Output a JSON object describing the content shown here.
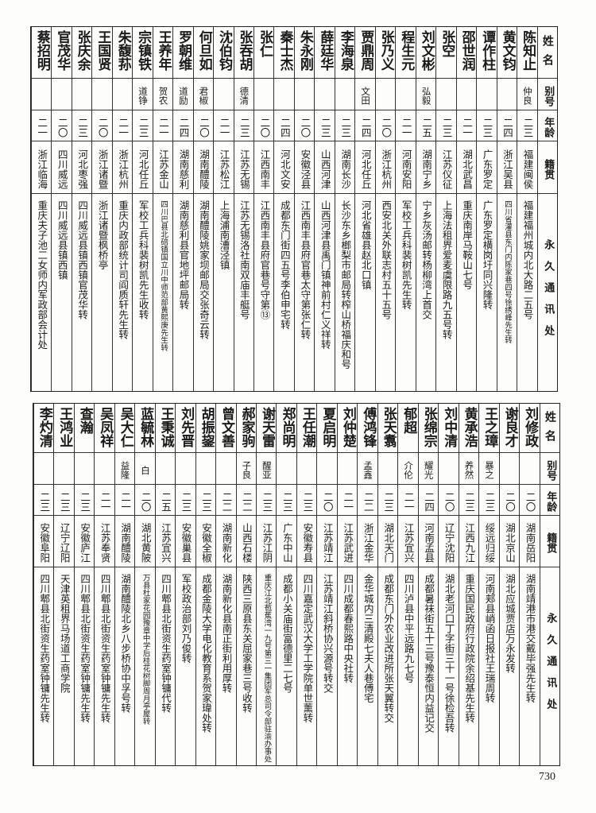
{
  "header": {
    "name": "姓名",
    "alias": "别号",
    "age": "年龄",
    "native": "籍贯",
    "address": "永久通讯处"
  },
  "top": {
    "rows": [
      {
        "name": "陈知止",
        "alias": "仲良",
        "age": "二三",
        "native": "福建闽侯",
        "address": "福建福州城内北大路二五号"
      },
      {
        "name": "黄文钧",
        "alias": "",
        "age": "二四",
        "native": "浙江吴县",
        "address": "四川省灌县东门内陈家巷四号徐绣峰先生转"
      },
      {
        "name": "谭作柱",
        "alias": "",
        "age": "二三",
        "native": "广东罗定",
        "address": "广东罗定横岗圩同兴隆转"
      },
      {
        "name": "邵世润",
        "alias": "",
        "age": "二一",
        "native": "湖北武昌",
        "address": "重庆南岸马鞍山七号"
      },
      {
        "name": "张空",
        "alias": "",
        "age": "二三",
        "native": "江苏仪征",
        "address": "上海法租界爱麦虞限路九五号转"
      },
      {
        "name": "刘文彬",
        "alias": "弘毅",
        "age": "二五",
        "native": "湖南宁乡",
        "address": "宁乡灰汤邮转杨柳湾上首交"
      },
      {
        "name": "程生元",
        "alias": "",
        "age": "二一",
        "native": "河南安阳",
        "address": "军校工兵科裴树凯先生转"
      },
      {
        "name": "张乃义",
        "alias": "",
        "age": "二〇",
        "native": "浙江杭州",
        "address": "西安北关外联志村五十五号"
      },
      {
        "name": "贾鼎周",
        "alias": "文田",
        "age": "二四",
        "native": "河北任丘",
        "address": "河北省雄县赵北口镇"
      },
      {
        "name": "李海泉",
        "alias": "",
        "age": "二三",
        "native": "湖南长沙",
        "address": "长沙东乡榔梨市邮局转榨山桥福庆和号"
      },
      {
        "name": "薛廷华",
        "alias": "",
        "age": "二三",
        "native": "山西河津",
        "address": "山西河津县禹门镇神前村仁义祥转"
      },
      {
        "name": "朱永刚",
        "alias": "",
        "age": "二〇",
        "native": "安徽泾县",
        "address": "江西南丰县府官巷太守第张仁转"
      },
      {
        "name": "秦士杰",
        "alias": "",
        "age": "二四",
        "native": "河北文安",
        "address": "成都东门街四五号李伯申宅转"
      },
      {
        "name": "张仁",
        "alias": "",
        "age": "二〇",
        "native": "江西南丰",
        "address": "江西南丰县府官巷号守第⑬"
      },
      {
        "name": "张吞胡",
        "alias": "德清",
        "age": "二三",
        "native": "江苏无锡",
        "address": "江苏无锡洛社南双庙丰艇号"
      },
      {
        "name": "沈伯钧",
        "alias": "",
        "age": "二一",
        "native": "江苏松江",
        "address": "上海浦南漕泾镇"
      },
      {
        "name": "何旦如",
        "alias": "君椒",
        "age": "二〇",
        "native": "湖南醴陵",
        "address": "湖南醴陵姚家坝邮局交张奇云转"
      },
      {
        "name": "罗朝维",
        "alias": "道励",
        "age": "二四",
        "native": "湖南慈利",
        "address": "湖南慈利县官地坪邮局转"
      },
      {
        "name": "王养年",
        "alias": "贺农",
        "age": "二一",
        "native": "江苏金山",
        "address": "四川巴县北碚镇国立川中师范部黄熙庚先生转"
      },
      {
        "name": "宗镇铁",
        "alias": "道铮",
        "age": "二三",
        "native": "河北任丘",
        "address": "军校工兵科裴树凯先生收转"
      },
      {
        "name": "朱馥荪",
        "alias": "",
        "age": "二一",
        "native": "浙江杭州",
        "address": "重庆内政部统计司阎质轩先生转"
      },
      {
        "name": "王国贤",
        "alias": "",
        "age": "二〇",
        "native": "浙江诸暨",
        "address": "浙江诸暨枫桥亭"
      },
      {
        "name": "张庆余",
        "alias": "",
        "age": "二三",
        "native": "河北枣强",
        "address": "四川威远县镇西镇官茂华转"
      },
      {
        "name": "官茂华",
        "alias": "",
        "age": "二〇",
        "native": "四川威远",
        "address": "四川威远县镇西镇"
      },
      {
        "name": "蔡招明",
        "alias": "",
        "age": "二一",
        "native": "浙江临海",
        "address": "重庆夫子池二女师内军政部会计处"
      }
    ]
  },
  "bottom": {
    "rows": [
      {
        "name": "刘修政",
        "alias": "",
        "age": "二〇",
        "native": "湖南岳阳",
        "address": "湖南靖港市港交戴毕强先生转"
      },
      {
        "name": "谢良才",
        "alias": "",
        "age": "二〇",
        "native": "湖北京山",
        "address": "湖北应城贾店万永发转"
      },
      {
        "name": "王之璋",
        "alias": "暴之",
        "age": "二三",
        "native": "绥远归绥",
        "address": "河南郏县峭函日报社王瑞周转"
      },
      {
        "name": "黄承浩",
        "alias": "养然",
        "age": "二三",
        "native": "江西九江",
        "address": "重庆国民政府行政院余绍基先生转"
      },
      {
        "name": "刘中清",
        "alias": "",
        "age": "二〇",
        "native": "辽宁沈阳",
        "address": "湖北老河口丁字街三十一号徐检吾转"
      },
      {
        "name": "张绵宗",
        "alias": "耀光",
        "age": "二四",
        "native": "河南孟县",
        "address": "成都暑袜街五十三号豫泰恒内益记交"
      },
      {
        "name": "郁超",
        "alias": "介伦",
        "age": "二一",
        "native": "江苏宜兴",
        "address": "四川泸县中平远路九七号"
      },
      {
        "name": "张天翥",
        "alias": "",
        "age": "二三",
        "native": "湖北天门",
        "address": "成都东门外农业改进所张天翼转交"
      },
      {
        "name": "傅鸿锋",
        "alias": "孟鑫",
        "age": "二二",
        "native": "浙江金华",
        "address": "金华城内三清殿七夫人巷傅宅"
      },
      {
        "name": "刘仲楚",
        "alias": "",
        "age": "二一",
        "native": "江苏武进",
        "address": "四川成都春熙路中央社转"
      },
      {
        "name": "夏启明",
        "alias": "",
        "age": "二〇",
        "native": "江苏靖江",
        "address": "江苏靖江斜桥协兴源号转交"
      },
      {
        "name": "王任潮",
        "alias": "",
        "age": "二三",
        "native": "安徽寿县",
        "address": "四川嘉定武汉大学工学院单世薰转"
      },
      {
        "name": "郑尚明",
        "alias": "",
        "age": "二三",
        "native": "广东中山",
        "address": "成都小关庙街富德里二七号"
      },
      {
        "name": "谢天雷",
        "alias": "醒亚",
        "age": "二三",
        "native": "江苏江阴",
        "address": "重庆江北苞蕉湾一九号第三一集团军总司令部驻渝办事处"
      },
      {
        "name": "郝家驹",
        "alias": "子良",
        "age": "二二",
        "native": "山西石楼",
        "address": "陕西三原县东关屈家巷三号收转"
      },
      {
        "name": "曾文善",
        "alias": "",
        "age": "二二",
        "native": "湖南新化",
        "address": "湖南新化县南正街利用厚转"
      },
      {
        "name": "胡振鋆",
        "alias": "",
        "age": "二三",
        "native": "安徽全椒",
        "address": "成都金陵大学电化教育系贺家瑋处转"
      },
      {
        "name": "刘先晋",
        "alias": "",
        "age": "二三",
        "native": "安徽巢县",
        "address": "军校政治部刘乃俊转"
      },
      {
        "name": "王秉诚",
        "alias": "",
        "age": "二五",
        "native": "江苏宜兴",
        "address": "四川郫县北街资生药室钟镛代转"
      },
      {
        "name": "蓝毓林",
        "alias": "白",
        "age": "二〇",
        "native": "湖北黄陂",
        "address": "万县杜家花园豫章中学后桂花树脚周月亭屋转"
      },
      {
        "name": "吴大仁",
        "alias": "益隆",
        "age": "二一",
        "native": "湖南醴陵",
        "address": "湖南醴陵北乡八步桥协中孚号转"
      },
      {
        "name": "吴凤祥",
        "alias": "",
        "age": "二一",
        "native": "江苏奉贤",
        "address": "四川郫县北街资生药室钟镛先生转"
      },
      {
        "name": "查瀚",
        "alias": "",
        "age": "二三",
        "native": "安徽庐江",
        "address": "四川郫县北街资生药室钟镛先生转"
      },
      {
        "name": "王鸿业",
        "alias": "",
        "age": "二三",
        "native": "辽宁辽阳",
        "address": "天津英租界马场道工商学院"
      },
      {
        "name": "李灼清",
        "alias": "",
        "age": "二三",
        "native": "安徽阜阳",
        "address": "四川郫县北街资生药室钟镛先生转"
      }
    ]
  },
  "page_number": "730"
}
